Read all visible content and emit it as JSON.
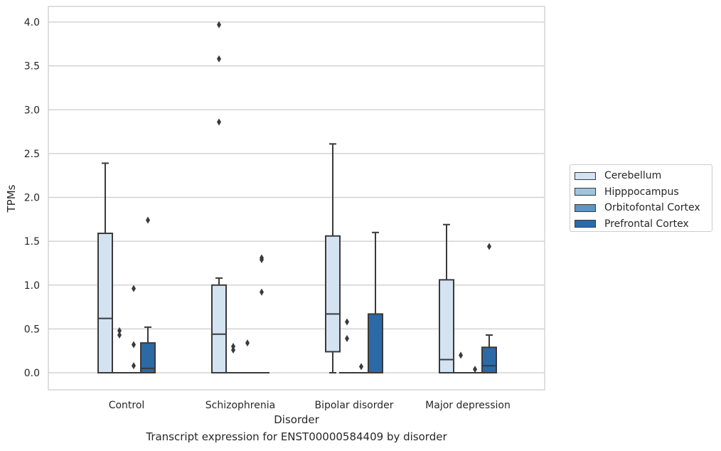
{
  "chart_data": {
    "type": "box",
    "caption": "Transcript expression for ENST00000584409 by disorder",
    "xlabel": "Disorder",
    "ylabel": "TPMs",
    "ylim": [
      -0.2,
      4.18
    ],
    "yticks": [
      "0.0",
      "0.5",
      "1.0",
      "1.5",
      "2.0",
      "2.5",
      "3.0",
      "3.5",
      "4.0"
    ],
    "grid": "horizontal",
    "legend_position": "right",
    "categories": [
      "Control",
      "Schizophrenia",
      "Bipolar disorder",
      "Major depression"
    ],
    "series": [
      {
        "name": "Cerebellum",
        "color": "#d4e3f2",
        "boxes": [
          {
            "min": 0.0,
            "q1": 0.0,
            "median": 0.62,
            "q3": 1.59,
            "max": 2.39,
            "outliers": []
          },
          {
            "min": 0.0,
            "q1": 0.0,
            "median": 0.44,
            "q3": 1.0,
            "max": 1.08,
            "outliers": [
              2.86,
              3.58,
              3.97
            ]
          },
          {
            "min": 0.0,
            "q1": 0.24,
            "median": 0.67,
            "q3": 1.56,
            "max": 2.61,
            "outliers": []
          },
          {
            "min": 0.0,
            "q1": 0.0,
            "median": 0.15,
            "q3": 1.06,
            "max": 1.69,
            "outliers": []
          }
        ]
      },
      {
        "name": "Hipppocampus",
        "color": "#9ec5df",
        "boxes": [
          {
            "min": 0.0,
            "q1": 0.0,
            "median": 0.0,
            "q3": 0.0,
            "max": 0.0,
            "outliers": [
              0.43,
              0.48
            ]
          },
          {
            "min": 0.0,
            "q1": 0.0,
            "median": 0.0,
            "q3": 0.0,
            "max": 0.0,
            "outliers": [
              0.26,
              0.3
            ]
          },
          {
            "min": 0.0,
            "q1": 0.0,
            "median": 0.0,
            "q3": 0.0,
            "max": 0.0,
            "outliers": [
              0.39,
              0.58
            ]
          },
          {
            "min": 0.0,
            "q1": 0.0,
            "median": 0.0,
            "q3": 0.0,
            "max": 0.0,
            "outliers": [
              0.2
            ]
          }
        ]
      },
      {
        "name": "Orbitofontal Cortex",
        "color": "#5a97c5",
        "boxes": [
          {
            "min": 0.0,
            "q1": 0.0,
            "median": 0.0,
            "q3": 0.0,
            "max": 0.0,
            "outliers": [
              0.08,
              0.32,
              0.96
            ]
          },
          {
            "min": 0.0,
            "q1": 0.0,
            "median": 0.0,
            "q3": 0.0,
            "max": 0.0,
            "outliers": [
              0.34
            ]
          },
          {
            "min": 0.0,
            "q1": 0.0,
            "median": 0.0,
            "q3": 0.0,
            "max": 0.0,
            "outliers": [
              0.07
            ]
          },
          {
            "min": 0.0,
            "q1": 0.0,
            "median": 0.0,
            "q3": 0.0,
            "max": 0.0,
            "outliers": [
              0.04
            ]
          }
        ]
      },
      {
        "name": "Prefrontal Cortex",
        "color": "#2b6aa6",
        "boxes": [
          {
            "min": 0.0,
            "q1": 0.0,
            "median": 0.05,
            "q3": 0.34,
            "max": 0.52,
            "outliers": [
              1.74
            ]
          },
          {
            "min": 0.0,
            "q1": 0.0,
            "median": 0.0,
            "q3": 0.0,
            "max": 0.0,
            "outliers": [
              0.92,
              1.29,
              1.31
            ]
          },
          {
            "min": 0.0,
            "q1": 0.0,
            "median": 0.0,
            "q3": 0.67,
            "max": 1.6,
            "outliers": []
          },
          {
            "min": 0.0,
            "q1": 0.0,
            "median": 0.08,
            "q3": 0.29,
            "max": 0.43,
            "outliers": [
              1.44
            ]
          }
        ]
      }
    ]
  }
}
